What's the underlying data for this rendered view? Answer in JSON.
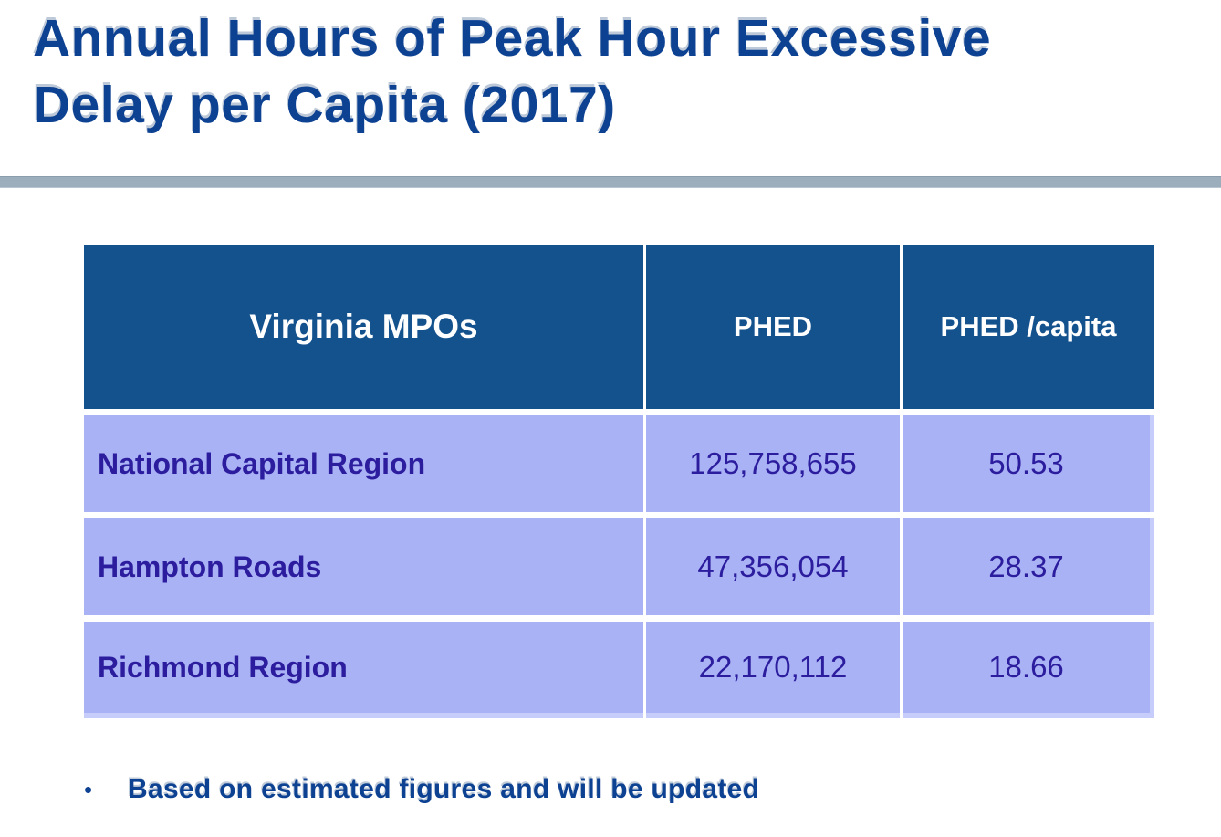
{
  "slide": {
    "title": "Annual Hours of Peak Hour Excessive Delay per Capita (2017)",
    "bullet_glyph": "•",
    "footnote": "Based on estimated figures and will be updated"
  },
  "table": {
    "headers": [
      "Virginia MPOs",
      "PHED",
      "PHED /capita"
    ],
    "rows": [
      {
        "name": "National Capital Region",
        "phed": "125,758,655",
        "phed_per_capita": "50.53"
      },
      {
        "name": "Hampton Roads",
        "phed": "47,356,054",
        "phed_per_capita": "28.37"
      },
      {
        "name": "Richmond Region",
        "phed": "22,170,112",
        "phed_per_capita": "18.66"
      }
    ]
  },
  "colors": {
    "title_text": "#0d4192",
    "divider_bar": "#9cadbc",
    "header_bg": "#14528e",
    "header_text": "#ffffff",
    "row_bg": "#a9b2f5",
    "row_text": "#2c1c9e",
    "row_accent_edge": "#c6cdfa"
  }
}
